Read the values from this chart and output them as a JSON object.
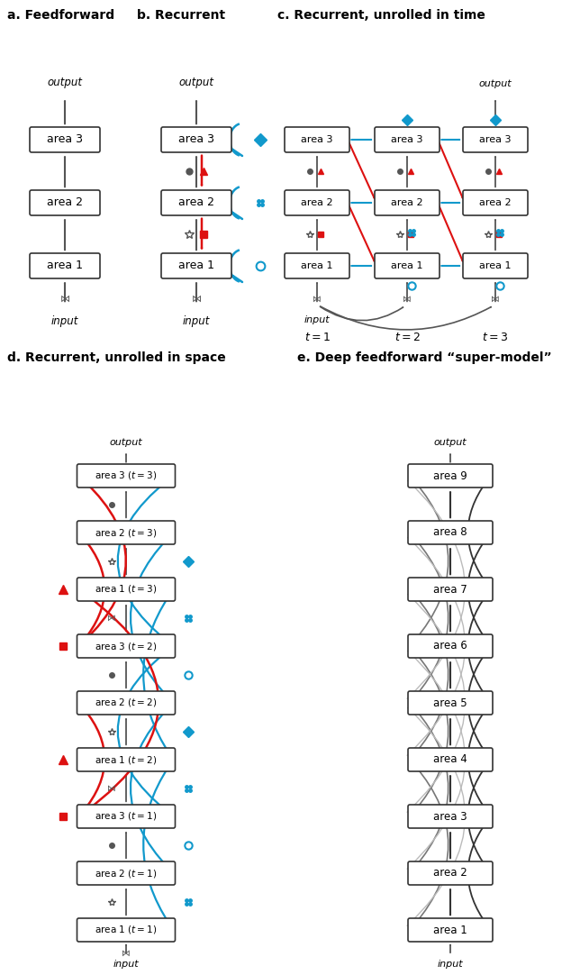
{
  "title_a": "a. Feedforward",
  "title_b": "b. Recurrent",
  "title_c": "c. Recurrent, unrolled in time",
  "title_d": "d. Recurrent, unrolled in space",
  "title_e": "e. Deep feedforward “super-model”",
  "box_edge": "#333333",
  "red": "#dd1111",
  "blue": "#1199cc",
  "gray": "#555555",
  "light_gray": "#aaaaaa"
}
